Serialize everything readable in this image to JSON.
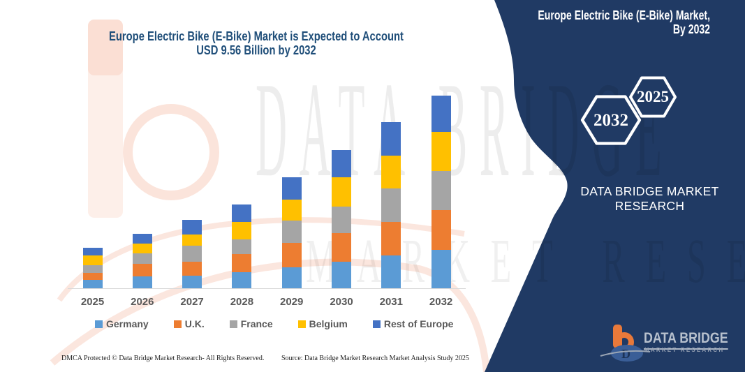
{
  "title": {
    "line1": "Europe Electric Bike (E-Bike) Market is Expected to Account",
    "line2": "USD 9.56 Billion by 2032"
  },
  "chart_data": {
    "type": "bar",
    "stacked": true,
    "categories": [
      "2025",
      "2026",
      "2027",
      "2028",
      "2029",
      "2030",
      "2031",
      "2032"
    ],
    "series": [
      {
        "name": "Germany",
        "color": "#5B9BD5",
        "values": [
          0.4,
          0.6,
          0.64,
          0.81,
          1.04,
          1.33,
          1.62,
          1.91
        ]
      },
      {
        "name": "U.K.",
        "color": "#ED7D31",
        "values": [
          0.35,
          0.61,
          0.67,
          0.87,
          1.21,
          1.39,
          1.67,
          1.96
        ]
      },
      {
        "name": "France",
        "color": "#A5A5A5",
        "values": [
          0.4,
          0.52,
          0.81,
          0.75,
          1.1,
          1.33,
          1.67,
          1.94
        ]
      },
      {
        "name": "Belgium",
        "color": "#FFC000",
        "values": [
          0.46,
          0.48,
          0.54,
          0.87,
          1.04,
          1.44,
          1.62,
          1.93
        ]
      },
      {
        "name": "Rest of Europe",
        "color": "#4472C4",
        "values": [
          0.4,
          0.5,
          0.73,
          0.84,
          1.1,
          1.35,
          1.64,
          1.82
        ]
      }
    ],
    "title": "Europe Electric Bike (E-Bike) Market is Expected to Account USD 9.56 Billion by 2032",
    "xlabel": "",
    "ylabel": "",
    "ylim": [
      0,
      10
    ],
    "grid": false,
    "legend_position": "bottom"
  },
  "watermark": {
    "line1": "DATA BRIDGE",
    "line2": "MARKET RESEARCH"
  },
  "side_panel": {
    "title_line1": "Europe Electric Bike (E-Bike) Market,",
    "title_line2": "By 2032",
    "hex_back": "2025",
    "hex_front": "2032",
    "brand_line1": "DATA BRIDGE MARKET",
    "brand_line2": "RESEARCH",
    "color": "#203A64"
  },
  "logo": {
    "name": "DATA BRIDGE",
    "tagline": "MARKET RESEARCH"
  },
  "footer": {
    "left": "DMCA Protected © Data Bridge Market Research-  All Rights Reserved.",
    "right": "Source: Data Bridge Market Research  Market Analysis Study 2025"
  }
}
